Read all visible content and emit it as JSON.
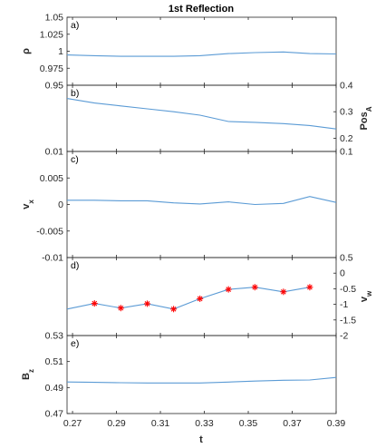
{
  "chart_data": {
    "type": "line",
    "title": "1st Reflection",
    "xlabel": "t",
    "xlim": [
      0.2675,
      0.39
    ],
    "xticks": [
      0.27,
      0.29,
      0.31,
      0.33,
      0.35,
      0.37,
      0.39
    ],
    "xtick_labels": [
      "0.27",
      "0.29",
      "0.31",
      "0.33",
      "0.35",
      "0.37",
      "0.39"
    ],
    "line_color": "#5b9bd5",
    "marker_color": "#ff0000",
    "panels": [
      {
        "letter": "a)",
        "left": {
          "label": "ρ",
          "ylim": [
            0.95,
            1.05
          ],
          "ticks": [
            "0.95",
            "0.975",
            "1",
            "1.025",
            "1.05"
          ],
          "tick_values": [
            0.95,
            0.975,
            1,
            1.025,
            1.05
          ]
        },
        "right": null,
        "series": [
          {
            "axis": "left",
            "markers": false,
            "x": [
              0.2675,
              0.28,
              0.292,
              0.304,
              0.316,
              0.328,
              0.341,
              0.353,
              0.366,
              0.378,
              0.39
            ],
            "y": [
              0.9945,
              0.9935,
              0.9925,
              0.9925,
              0.9925,
              0.9935,
              0.9965,
              0.998,
              0.999,
              0.9965,
              0.996
            ]
          }
        ]
      },
      {
        "letter": "b)",
        "left": {
          "label": "",
          "ylim": [
            0.1,
            0.4
          ],
          "ticks": [],
          "tick_values": []
        },
        "right": {
          "label": "Pos",
          "label_sub": "A",
          "ylim": [
            0.15,
            0.4
          ],
          "ticks": [
            "0.2",
            "0.3",
            "0.4"
          ],
          "tick_values": [
            0.2,
            0.3,
            0.4
          ]
        },
        "series": [
          {
            "axis": "right",
            "markers": false,
            "x": [
              0.2675,
              0.28,
              0.292,
              0.304,
              0.316,
              0.328,
              0.341,
              0.353,
              0.366,
              0.378,
              0.39
            ],
            "y": [
              0.35,
              0.333,
              0.322,
              0.311,
              0.3,
              0.287,
              0.263,
              0.26,
              0.255,
              0.248,
              0.235
            ]
          }
        ]
      },
      {
        "letter": "c)",
        "left": {
          "label": "v",
          "label_sub": "x",
          "ylim": [
            -0.01,
            0.01
          ],
          "ticks": [
            "-0.01",
            "-0.005",
            "0",
            "0.005",
            "0.01"
          ],
          "tick_values": [
            -0.01,
            -0.005,
            0,
            0.005,
            0.01
          ]
        },
        "right": {
          "label": "",
          "ylim": [
            -0.1,
            0.1
          ],
          "ticks": [
            "0.1"
          ],
          "tick_values": [
            0.1
          ]
        },
        "series": [
          {
            "axis": "left",
            "markers": false,
            "x": [
              0.2675,
              0.28,
              0.292,
              0.304,
              0.316,
              0.328,
              0.341,
              0.353,
              0.366,
              0.378,
              0.39
            ],
            "y": [
              0.0008,
              0.0008,
              0.0007,
              0.0007,
              0.0003,
              0.0001,
              0.0005,
              0.0,
              0.0002,
              0.0015,
              0.0004
            ]
          }
        ]
      },
      {
        "letter": "d)",
        "left": {
          "label": "",
          "ylim": [
            -2,
            0.5
          ],
          "ticks": [],
          "tick_values": []
        },
        "right": {
          "label": "v",
          "label_sub": "w",
          "ylim": [
            -2,
            0.5
          ],
          "ticks": [
            "-2",
            "-1.5",
            "-1",
            "-0.5",
            "0",
            "0.5"
          ],
          "tick_values": [
            -2,
            -1.5,
            -1,
            -0.5,
            0,
            0.5
          ]
        },
        "series": [
          {
            "axis": "right",
            "markers": true,
            "x": [
              0.2675,
              0.28,
              0.292,
              0.304,
              0.316,
              0.328,
              0.341,
              0.353,
              0.366,
              0.378
            ],
            "y": [
              -1.15,
              -0.97,
              -1.12,
              -0.98,
              -1.15,
              -0.82,
              -0.52,
              -0.45,
              -0.6,
              -0.45
            ],
            "marker_from_index": 1
          }
        ]
      },
      {
        "letter": "e)",
        "left": {
          "label": "B",
          "label_sub": "z",
          "ylim": [
            0.47,
            0.53
          ],
          "ticks": [
            "0.47",
            "0.49",
            "0.51",
            "0.53"
          ],
          "tick_values": [
            0.47,
            0.49,
            0.51,
            0.53
          ]
        },
        "right": null,
        "series": [
          {
            "axis": "left",
            "markers": false,
            "x": [
              0.2675,
              0.28,
              0.292,
              0.304,
              0.316,
              0.328,
              0.341,
              0.353,
              0.366,
              0.378,
              0.39
            ],
            "y": [
              0.4943,
              0.494,
              0.4937,
              0.4935,
              0.4935,
              0.4935,
              0.4942,
              0.495,
              0.4956,
              0.4958,
              0.4978
            ]
          }
        ]
      }
    ]
  }
}
